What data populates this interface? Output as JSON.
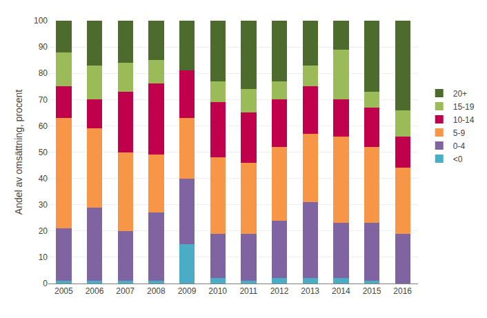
{
  "chart_data": {
    "type": "bar",
    "stacked": true,
    "categories": [
      "2005",
      "2006",
      "2007",
      "2008",
      "2009",
      "2010",
      "2011",
      "2012",
      "2013",
      "2014",
      "2015",
      "2016"
    ],
    "series": [
      {
        "name": "<0",
        "color": "#4bacc6",
        "values": [
          1,
          1,
          1,
          1,
          15,
          2,
          1,
          2,
          2,
          2,
          1,
          0
        ]
      },
      {
        "name": "0-4",
        "color": "#8064a2",
        "values": [
          20,
          28,
          19,
          26,
          25,
          17,
          18,
          22,
          29,
          21,
          22,
          19
        ]
      },
      {
        "name": "5-9",
        "color": "#f79646",
        "values": [
          42,
          30,
          30,
          22,
          23,
          29,
          27,
          28,
          26,
          33,
          29,
          25
        ]
      },
      {
        "name": "10-14",
        "color": "#c0004b",
        "values": [
          12,
          11,
          23,
          27,
          18,
          21,
          19,
          18,
          18,
          14,
          15,
          12
        ]
      },
      {
        "name": "15-19",
        "color": "#9bbb59",
        "values": [
          13,
          13,
          11,
          9,
          0,
          8,
          9,
          7,
          8,
          19,
          6,
          10
        ]
      },
      {
        "name": "20+",
        "color": "#4e6b2e",
        "values": [
          12,
          17,
          16,
          15,
          19,
          23,
          26,
          23,
          17,
          11,
          27,
          34
        ]
      }
    ],
    "ylabel": "Andel av omsättning, procent",
    "ylim": [
      0,
      100
    ],
    "yticks": [
      0,
      10,
      20,
      30,
      40,
      50,
      60,
      70,
      80,
      90,
      100
    ],
    "grid": true,
    "legend": "right"
  }
}
